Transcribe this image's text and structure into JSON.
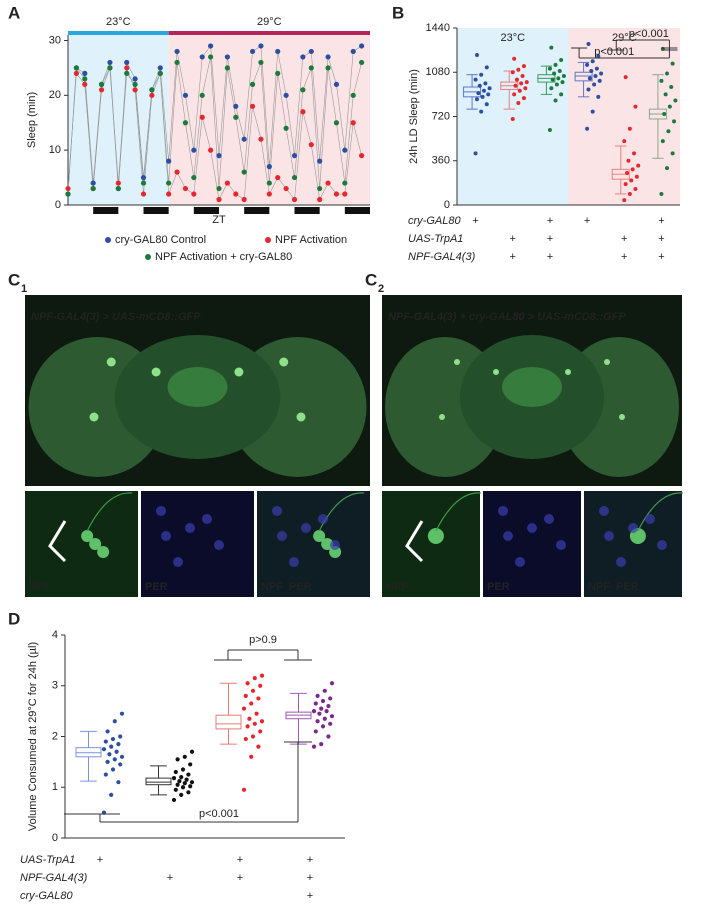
{
  "chart_data": [
    {
      "type": "line",
      "panel": "A",
      "ylabel": "Sleep (min)",
      "xlabel": "ZT",
      "x": [
        0,
        4,
        8,
        12,
        16,
        20,
        24,
        28,
        32,
        36,
        40,
        44,
        48,
        52,
        56,
        60,
        64,
        68,
        72,
        76,
        80,
        84,
        88,
        92,
        96,
        100,
        104,
        108,
        112,
        116,
        120,
        124,
        128,
        132,
        136,
        140
      ],
      "xlim": [
        0,
        144
      ],
      "ylim": [
        0,
        31
      ],
      "yticks": [
        0,
        10,
        20,
        30
      ],
      "temperature_periods": [
        {
          "label": "23°C",
          "range": [
            0,
            48
          ],
          "color": "#dff1fb",
          "bar_color": "#29a8e0"
        },
        {
          "label": "29°C",
          "range": [
            48,
            144
          ],
          "color": "#fbe4e6",
          "bar_color": "#b5245a"
        }
      ],
      "dark_periods": [
        [
          12,
          24
        ],
        [
          36,
          48
        ],
        [
          60,
          72
        ],
        [
          84,
          96
        ],
        [
          108,
          120
        ],
        [
          132,
          144
        ]
      ],
      "series": [
        {
          "name": "cry-GAL80 Control",
          "color": "#2c4fa3",
          "values": [
            2,
            25,
            24,
            4,
            22,
            26,
            3,
            26,
            23,
            5,
            21,
            25,
            8,
            28,
            20,
            10,
            27,
            29,
            9,
            27,
            18,
            12,
            28,
            29,
            7,
            28,
            20,
            9,
            27,
            28,
            8,
            27,
            22,
            10,
            28,
            29
          ]
        },
        {
          "name": "NPF Activation",
          "color": "#e8262d",
          "values": [
            3,
            24,
            22,
            3,
            21,
            25,
            4,
            25,
            21,
            2,
            20,
            24,
            2,
            6,
            3,
            2,
            16,
            10,
            1,
            4,
            2,
            1,
            18,
            12,
            2,
            5,
            3,
            1,
            17,
            11,
            1,
            4,
            2,
            2,
            15,
            9
          ]
        },
        {
          "name": "NPF Activation + cry-GAL80",
          "color": "#1c7a3c",
          "values": [
            2,
            25,
            23,
            3,
            22,
            25,
            3,
            24,
            22,
            4,
            21,
            24,
            4,
            26,
            15,
            5,
            20,
            27,
            3,
            25,
            16,
            6,
            22,
            26,
            4,
            24,
            14,
            5,
            21,
            25,
            3,
            25,
            15,
            4,
            20,
            26
          ]
        }
      ]
    },
    {
      "type": "box",
      "panel": "B",
      "ylabel": "24h LD Sleep (min)",
      "ylim": [
        0,
        1440
      ],
      "yticks": [
        0,
        360,
        720,
        1080,
        1440
      ],
      "temperature_groups": [
        {
          "label": "23°C",
          "groups": [
            0,
            1,
            2
          ],
          "color": "#dff1fb"
        },
        {
          "label": "29°C",
          "groups": [
            3,
            4,
            5
          ],
          "color": "#fbe4e6"
        }
      ],
      "groups": [
        {
          "color": "#2c4fa3",
          "box_color": "#5a78c8",
          "box": {
            "low": 780,
            "q1": 880,
            "median": 920,
            "q3": 960,
            "high": 1060
          },
          "values": [
            420,
            760,
            820,
            860,
            880,
            900,
            910,
            930,
            950,
            970,
            990,
            1020,
            1060,
            1120,
            1220
          ]
        },
        {
          "color": "#e8262d",
          "box_color": "#e98080",
          "box": {
            "low": 780,
            "q1": 940,
            "median": 970,
            "q3": 1000,
            "high": 1090
          },
          "values": [
            700,
            830,
            870,
            900,
            930,
            950,
            970,
            990,
            1000,
            1020,
            1050,
            1080,
            1100,
            1130,
            1190
          ]
        },
        {
          "color": "#1c7a3c",
          "box_color": "#3a9a5a",
          "box": {
            "low": 900,
            "q1": 1000,
            "median": 1030,
            "q3": 1060,
            "high": 1130
          },
          "values": [
            610,
            850,
            900,
            950,
            980,
            1000,
            1020,
            1030,
            1050,
            1070,
            1090,
            1110,
            1140,
            1180,
            1280
          ]
        },
        {
          "color": "#2c4fa3",
          "box_color": "#5a78c8",
          "box": {
            "low": 880,
            "q1": 1010,
            "median": 1050,
            "q3": 1080,
            "high": 1160
          },
          "values": [
            620,
            760,
            880,
            940,
            980,
            1010,
            1030,
            1050,
            1070,
            1090,
            1110,
            1140,
            1170,
            1210,
            1310
          ]
        },
        {
          "color": "#e8262d",
          "box_color": "#e98080",
          "box": {
            "low": 90,
            "q1": 210,
            "median": 250,
            "q3": 290,
            "high": 480
          },
          "values": [
            40,
            90,
            130,
            170,
            200,
            230,
            260,
            290,
            320,
            360,
            420,
            520,
            620,
            800,
            1040
          ]
        },
        {
          "color": "#1c7a3c",
          "box_color": "#8aa88f",
          "box": {
            "low": 380,
            "q1": 700,
            "median": 740,
            "q3": 780,
            "high": 1060
          },
          "values": [
            90,
            300,
            420,
            520,
            600,
            680,
            740,
            800,
            850,
            900,
            960,
            1010,
            1070,
            1150,
            1270
          ]
        }
      ],
      "annotations": [
        {
          "text": "p<0.001",
          "groups": [
            3,
            5
          ]
        },
        {
          "text": "p<0.001",
          "groups": [
            4,
            5
          ]
        }
      ],
      "genotypes": [
        {
          "label": "cry-GAL80",
          "marks": [
            "+",
            null,
            "+",
            "+",
            null,
            "+"
          ]
        },
        {
          "label": "UAS-TrpA1",
          "marks": [
            null,
            "+",
            "+",
            null,
            "+",
            "+"
          ]
        },
        {
          "label": "NPF-GAL4(3)",
          "marks": [
            null,
            "+",
            "+",
            null,
            "+",
            "+"
          ]
        }
      ]
    },
    {
      "type": "box",
      "panel": "D",
      "ylabel": "Volume Consumed at 29°C for 24h (µl)",
      "ylim": [
        0,
        4
      ],
      "yticks": [
        0,
        1,
        2,
        3,
        4
      ],
      "groups": [
        {
          "color": "#2c4fa3",
          "box_color": "#7b94d6",
          "box": {
            "low": 1.12,
            "q1": 1.6,
            "median": 1.68,
            "q3": 1.78,
            "high": 2.1
          },
          "values": [
            0.5,
            0.85,
            1.1,
            1.25,
            1.35,
            1.45,
            1.5,
            1.55,
            1.6,
            1.65,
            1.7,
            1.75,
            1.8,
            1.85,
            1.9,
            1.95,
            2.0,
            2.1,
            2.3,
            2.45
          ]
        },
        {
          "color": "#111111",
          "box_color": "#333333",
          "box": {
            "low": 0.85,
            "q1": 1.05,
            "median": 1.1,
            "q3": 1.18,
            "high": 1.42
          },
          "values": [
            0.75,
            0.85,
            0.9,
            0.95,
            1.0,
            1.02,
            1.05,
            1.08,
            1.1,
            1.12,
            1.15,
            1.18,
            1.2,
            1.25,
            1.3,
            1.35,
            1.45,
            1.55,
            1.6,
            1.7
          ]
        },
        {
          "color": "#e8262d",
          "box_color": "#e87878",
          "box": {
            "low": 1.85,
            "q1": 2.15,
            "median": 2.25,
            "q3": 2.42,
            "high": 3.05
          },
          "values": [
            0.95,
            1.6,
            1.8,
            1.95,
            2.0,
            2.1,
            2.2,
            2.25,
            2.3,
            2.35,
            2.45,
            2.55,
            2.65,
            2.75,
            2.8,
            2.9,
            3.0,
            3.05,
            3.15,
            3.2
          ]
        },
        {
          "color": "#7a2a8a",
          "box_color": "#9b59b6",
          "box": {
            "low": 1.85,
            "q1": 2.35,
            "median": 2.42,
            "q3": 2.48,
            "high": 2.85
          },
          "values": [
            1.8,
            1.85,
            2.0,
            2.1,
            2.2,
            2.25,
            2.3,
            2.35,
            2.4,
            2.45,
            2.5,
            2.5,
            2.55,
            2.6,
            2.65,
            2.7,
            2.75,
            2.8,
            2.9,
            3.05
          ]
        }
      ],
      "annotations": [
        {
          "text": "p>0.9",
          "groups": [
            2,
            3
          ]
        },
        {
          "text": "p<0.001",
          "groups": [
            0,
            3
          ]
        }
      ],
      "genotypes": [
        {
          "label": "UAS-TrpA1",
          "marks": [
            "+",
            null,
            "+",
            "+"
          ]
        },
        {
          "label": "NPF-GAL4(3)",
          "marks": [
            null,
            "+",
            "+",
            "+"
          ]
        },
        {
          "label": "cry-GAL80",
          "marks": [
            null,
            null,
            null,
            "+"
          ]
        }
      ]
    }
  ],
  "images": [
    {
      "panel": "C",
      "subscript": "1",
      "caption": "NPF-GAL4(3) > UAS-mCD8::GFP",
      "insets": [
        "NPF",
        "PER",
        [
          "NPF",
          "PER"
        ]
      ]
    },
    {
      "panel": "C",
      "subscript": "2",
      "caption": "NPF-GAL4(3) + cry-GAL80 > UAS-mCD8::GFP",
      "insets": [
        "NPF",
        "PER",
        [
          "NPF",
          "PER"
        ]
      ]
    }
  ]
}
